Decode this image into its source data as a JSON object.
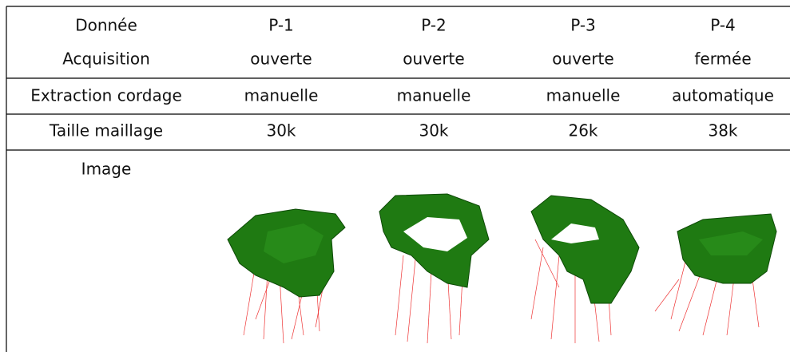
{
  "table": {
    "rows": [
      [
        "Donnée",
        "P-1",
        "P-2",
        "P-3",
        "P-4"
      ],
      [
        "Acquisition",
        "ouverte",
        "ouverte",
        "ouverte",
        "fermée"
      ],
      [
        "Extraction cordage",
        "manuelle",
        "manuelle",
        "manuelle",
        "automatique"
      ],
      [
        "Taille maillage",
        "30k",
        "30k",
        "26k",
        "38k"
      ],
      [
        "Image"
      ]
    ]
  }
}
